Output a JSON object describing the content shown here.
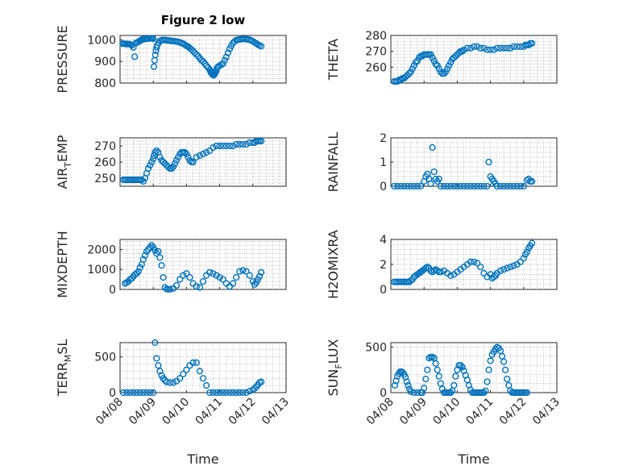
{
  "chart_data": [
    {
      "type": "scatter",
      "title": "Figure 2 low",
      "ylabel": "PRESSURE",
      "xlim": [
        0,
        5
      ],
      "ylim": [
        800,
        1020
      ],
      "yticks": [
        800,
        900,
        1000
      ],
      "marker_color": "#0072BD",
      "grid": true,
      "x": [
        0.08,
        0.12,
        0.16,
        0.2,
        0.24,
        0.28,
        0.32,
        0.36,
        0.4,
        0.44,
        0.48,
        0.52,
        0.56,
        0.6,
        0.64,
        0.68,
        0.72,
        0.76,
        0.8,
        0.84,
        0.88,
        0.92,
        0.96,
        1.0,
        1.02,
        1.04,
        1.06,
        1.08,
        1.1,
        1.12,
        1.16,
        1.2,
        1.25,
        1.3,
        1.35,
        1.4,
        1.45,
        1.5,
        1.55,
        1.6,
        1.65,
        1.7,
        1.75,
        1.8,
        1.85,
        1.9,
        1.95,
        2.0,
        2.05,
        2.1,
        2.15,
        2.2,
        2.25,
        2.3,
        2.35,
        2.4,
        2.45,
        2.5,
        2.55,
        2.6,
        2.65,
        2.7,
        2.72,
        2.74,
        2.76,
        2.78,
        2.8,
        2.82,
        2.84,
        2.86,
        2.88,
        2.9,
        2.92,
        2.95,
        3.0,
        3.05,
        3.1,
        3.15,
        3.2,
        3.25,
        3.3,
        3.35,
        3.4,
        3.45,
        3.5,
        3.55,
        3.6,
        3.65,
        3.7,
        3.75,
        3.8,
        3.85,
        3.9,
        3.95,
        4.0,
        4.05,
        4.1,
        4.15,
        4.2,
        4.25
      ],
      "y": [
        982,
        982,
        981,
        981,
        980,
        980,
        978,
        975,
        965,
        922,
        985,
        988,
        992,
        995,
        1000,
        1002,
        1003,
        1005,
        1005,
        1006,
        1006,
        1007,
        1007,
        1005,
        876,
        905,
        930,
        950,
        965,
        975,
        985,
        995,
        998,
        999,
        999,
        998,
        997,
        996,
        995,
        994,
        993,
        992,
        990,
        988,
        985,
        982,
        978,
        972,
        968,
        962,
        955,
        948,
        940,
        932,
        925,
        915,
        905,
        900,
        890,
        880,
        872,
        862,
        855,
        848,
        845,
        840,
        838,
        836,
        840,
        845,
        850,
        860,
        870,
        875,
        880,
        885,
        890,
        905,
        920,
        940,
        958,
        972,
        985,
        992,
        998,
        1000,
        1002,
        1003,
        1004,
        1004,
        1003,
        1002,
        1000,
        997,
        993,
        988,
        983,
        978,
        974,
        970
      ]
    },
    {
      "type": "scatter",
      "ylabel": "THETA",
      "xlim": [
        0,
        5
      ],
      "ylim": [
        250,
        280
      ],
      "yticks": [
        260,
        270,
        280
      ],
      "marker_color": "#0072BD",
      "grid": true,
      "x": [
        0.1,
        0.15,
        0.2,
        0.25,
        0.3,
        0.35,
        0.4,
        0.45,
        0.5,
        0.55,
        0.6,
        0.65,
        0.7,
        0.75,
        0.8,
        0.85,
        0.9,
        0.95,
        1.0,
        1.05,
        1.1,
        1.15,
        1.2,
        1.25,
        1.3,
        1.35,
        1.4,
        1.45,
        1.5,
        1.55,
        1.6,
        1.65,
        1.7,
        1.75,
        1.8,
        1.85,
        1.9,
        1.95,
        2.0,
        2.05,
        2.1,
        2.15,
        2.2,
        2.3,
        2.4,
        2.5,
        2.6,
        2.7,
        2.8,
        2.9,
        3.0,
        3.1,
        3.2,
        3.3,
        3.4,
        3.5,
        3.6,
        3.7,
        3.8,
        3.9,
        4.0,
        4.05,
        4.1,
        4.15,
        4.2,
        4.25
      ],
      "y": [
        251,
        251,
        251,
        252,
        252,
        253,
        253,
        254,
        255,
        256,
        257,
        259,
        261,
        263,
        264,
        266,
        267,
        267,
        268,
        268,
        268,
        268,
        268,
        266,
        264,
        262,
        261,
        259,
        257,
        256,
        256,
        257,
        259,
        261,
        263,
        265,
        266,
        267,
        268,
        269,
        270,
        270,
        271,
        272,
        272,
        273,
        273,
        272,
        272,
        271,
        271,
        271,
        272,
        272,
        272,
        272,
        272,
        273,
        273,
        273,
        273,
        274,
        274,
        274,
        275,
        275
      ]
    },
    {
      "type": "scatter",
      "ylabel": "AIR_TEMP",
      "xlim": [
        0,
        5
      ],
      "ylim": [
        245,
        275
      ],
      "yticks": [
        250,
        260,
        270
      ],
      "marker_color": "#0072BD",
      "grid": true,
      "x": [
        0.1,
        0.15,
        0.2,
        0.25,
        0.3,
        0.35,
        0.4,
        0.45,
        0.5,
        0.55,
        0.6,
        0.65,
        0.7,
        0.75,
        0.8,
        0.85,
        0.9,
        0.95,
        1.0,
        1.02,
        1.05,
        1.1,
        1.15,
        1.2,
        1.25,
        1.3,
        1.35,
        1.4,
        1.45,
        1.5,
        1.55,
        1.6,
        1.65,
        1.7,
        1.75,
        1.8,
        1.85,
        1.9,
        1.95,
        2.0,
        2.05,
        2.1,
        2.15,
        2.2,
        2.3,
        2.4,
        2.5,
        2.6,
        2.7,
        2.8,
        2.9,
        3.0,
        3.1,
        3.2,
        3.3,
        3.4,
        3.5,
        3.6,
        3.7,
        3.8,
        3.9,
        4.0,
        4.05,
        4.1,
        4.15,
        4.2,
        4.25
      ],
      "y": [
        249,
        249,
        249,
        249,
        249,
        249,
        249,
        249,
        249,
        249,
        249,
        249,
        248,
        250,
        253,
        256,
        258,
        260,
        262,
        264,
        266,
        267,
        266,
        263,
        261,
        260,
        259,
        258,
        257,
        256,
        256,
        257,
        259,
        261,
        263,
        265,
        266,
        266,
        266,
        265,
        263,
        261,
        260,
        260,
        263,
        264,
        265,
        266,
        267,
        269,
        270,
        270,
        270,
        270,
        270,
        270,
        271,
        271,
        271,
        271,
        272,
        272,
        272,
        273,
        273,
        273,
        273
      ]
    },
    {
      "type": "scatter",
      "ylabel": "RAINFALL",
      "xlim": [
        0,
        5
      ],
      "ylim": [
        0,
        2
      ],
      "yticks": [
        0,
        1,
        2
      ],
      "marker_color": "#0072BD",
      "grid": true,
      "x": [
        0.1,
        0.2,
        0.3,
        0.4,
        0.5,
        0.6,
        0.7,
        0.8,
        0.9,
        1.0,
        1.05,
        1.1,
        1.15,
        1.2,
        1.25,
        1.3,
        1.35,
        1.4,
        1.45,
        1.5,
        1.6,
        1.7,
        1.8,
        1.9,
        2.0,
        2.1,
        2.2,
        2.3,
        2.4,
        2.5,
        2.6,
        2.7,
        2.8,
        2.9,
        2.95,
        3.0,
        3.05,
        3.1,
        3.15,
        3.2,
        3.3,
        3.4,
        3.5,
        3.6,
        3.7,
        3.8,
        3.9,
        4.0,
        4.1,
        4.15,
        4.2,
        4.25
      ],
      "y": [
        0,
        0,
        0,
        0,
        0,
        0,
        0,
        0,
        0,
        0.2,
        0.4,
        0.5,
        0.3,
        0.1,
        1.6,
        0.6,
        0.3,
        0.2,
        0.3,
        0,
        0,
        0,
        0,
        0,
        0,
        0,
        0,
        0,
        0,
        0,
        0,
        0,
        0,
        0,
        1.0,
        0.4,
        0.3,
        0.2,
        0.1,
        0,
        0,
        0,
        0,
        0,
        0,
        0,
        0,
        0,
        0.25,
        0.3,
        0.2,
        0.2
      ]
    },
    {
      "type": "scatter",
      "ylabel": "MIXDEPTH",
      "xlim": [
        0,
        5
      ],
      "ylim": [
        0,
        2500
      ],
      "yticks": [
        0,
        1000,
        2000
      ],
      "marker_color": "#0072BD",
      "grid": true,
      "x": [
        0.15,
        0.2,
        0.25,
        0.3,
        0.35,
        0.4,
        0.45,
        0.5,
        0.55,
        0.6,
        0.65,
        0.7,
        0.75,
        0.8,
        0.85,
        0.9,
        0.95,
        1.0,
        1.05,
        1.1,
        1.15,
        1.2,
        1.25,
        1.3,
        1.35,
        1.4,
        1.45,
        1.5,
        1.6,
        1.7,
        1.8,
        1.9,
        2.0,
        2.1,
        2.2,
        2.3,
        2.4,
        2.5,
        2.6,
        2.7,
        2.8,
        2.9,
        3.0,
        3.1,
        3.2,
        3.3,
        3.4,
        3.5,
        3.6,
        3.7,
        3.8,
        3.9,
        4.0,
        4.05,
        4.1,
        4.15,
        4.2,
        4.25
      ],
      "y": [
        300,
        350,
        400,
        500,
        550,
        650,
        750,
        800,
        900,
        1100,
        1250,
        1500,
        1700,
        1900,
        2000,
        2100,
        2200,
        2100,
        1950,
        1800,
        1900,
        1600,
        1200,
        600,
        100,
        20,
        10,
        10,
        50,
        200,
        500,
        700,
        800,
        600,
        300,
        150,
        100,
        400,
        700,
        850,
        800,
        700,
        600,
        500,
        300,
        150,
        300,
        600,
        900,
        950,
        900,
        700,
        400,
        250,
        350,
        500,
        650,
        850
      ]
    },
    {
      "type": "scatter",
      "ylabel": "H2OMIXRA",
      "xlim": [
        0,
        5
      ],
      "ylim": [
        0,
        4
      ],
      "yticks": [
        0,
        2,
        4
      ],
      "marker_color": "#0072BD",
      "grid": true,
      "x": [
        0.1,
        0.15,
        0.2,
        0.25,
        0.3,
        0.35,
        0.4,
        0.45,
        0.5,
        0.55,
        0.6,
        0.65,
        0.7,
        0.75,
        0.8,
        0.85,
        0.9,
        0.95,
        1.0,
        1.05,
        1.1,
        1.15,
        1.2,
        1.25,
        1.3,
        1.35,
        1.4,
        1.45,
        1.5,
        1.6,
        1.7,
        1.8,
        1.9,
        2.0,
        2.1,
        2.2,
        2.3,
        2.4,
        2.5,
        2.6,
        2.7,
        2.8,
        2.9,
        3.0,
        3.05,
        3.1,
        3.15,
        3.2,
        3.3,
        3.4,
        3.5,
        3.6,
        3.7,
        3.8,
        3.9,
        4.0,
        4.05,
        4.1,
        4.15,
        4.2,
        4.25
      ],
      "y": [
        0.6,
        0.6,
        0.6,
        0.6,
        0.6,
        0.6,
        0.6,
        0.6,
        0.6,
        0.6,
        0.7,
        0.8,
        1.0,
        1.1,
        1.2,
        1.3,
        1.4,
        1.5,
        1.6,
        1.7,
        1.8,
        1.7,
        1.5,
        1.4,
        1.5,
        1.6,
        1.5,
        1.4,
        1.4,
        1.5,
        1.3,
        1.1,
        1.2,
        1.4,
        1.6,
        1.8,
        2.0,
        2.2,
        2.2,
        2.1,
        1.8,
        1.3,
        1.0,
        1.2,
        0.9,
        1.0,
        1.1,
        1.3,
        1.5,
        1.6,
        1.7,
        1.8,
        1.9,
        2.0,
        2.2,
        2.5,
        2.8,
        3.0,
        3.3,
        3.5,
        3.7
      ]
    },
    {
      "type": "scatter",
      "ylabel": "TERR_MSL",
      "xlabel": "Time",
      "xlim": [
        0,
        5
      ],
      "ylim": [
        0,
        700
      ],
      "yticks": [
        0,
        500
      ],
      "xticks": [
        "04/08",
        "04/09",
        "04/10",
        "04/11",
        "04/12",
        "04/13"
      ],
      "marker_color": "#0072BD",
      "grid": true,
      "x": [
        0.1,
        0.2,
        0.3,
        0.4,
        0.5,
        0.6,
        0.7,
        0.8,
        0.9,
        1.0,
        1.05,
        1.1,
        1.15,
        1.2,
        1.25,
        1.3,
        1.35,
        1.4,
        1.5,
        1.6,
        1.7,
        1.8,
        1.9,
        2.0,
        2.1,
        2.2,
        2.3,
        2.4,
        2.5,
        2.6,
        2.7,
        2.8,
        2.9,
        3.0,
        3.1,
        3.2,
        3.3,
        3.4,
        3.5,
        3.6,
        3.7,
        3.8,
        3.9,
        4.0,
        4.05,
        4.1,
        4.15,
        4.2,
        4.25
      ],
      "y": [
        0,
        0,
        0,
        0,
        0,
        0,
        0,
        0,
        0,
        0,
        700,
        480,
        380,
        300,
        240,
        200,
        170,
        150,
        140,
        140,
        160,
        200,
        260,
        320,
        380,
        420,
        420,
        300,
        200,
        100,
        0,
        0,
        0,
        0,
        0,
        0,
        0,
        0,
        0,
        0,
        0,
        0,
        20,
        40,
        60,
        80,
        110,
        140,
        150
      ]
    },
    {
      "type": "scatter",
      "ylabel": "SUN_FLUX",
      "xlabel": "Time",
      "xlim": [
        0,
        5
      ],
      "ylim": [
        0,
        550
      ],
      "yticks": [
        0,
        500
      ],
      "xticks": [
        "04/08",
        "04/09",
        "04/10",
        "04/11",
        "04/12",
        "04/13"
      ],
      "marker_color": "#0072BD",
      "grid": true,
      "x": [
        0.12,
        0.16,
        0.2,
        0.24,
        0.28,
        0.32,
        0.36,
        0.4,
        0.44,
        0.48,
        0.52,
        0.56,
        0.6,
        0.7,
        0.8,
        0.9,
        0.95,
        1.0,
        1.05,
        1.1,
        1.15,
        1.2,
        1.25,
        1.3,
        1.35,
        1.4,
        1.45,
        1.5,
        1.55,
        1.6,
        1.65,
        1.7,
        1.75,
        1.8,
        1.85,
        1.9,
        1.95,
        2.0,
        2.05,
        2.1,
        2.15,
        2.2,
        2.25,
        2.3,
        2.35,
        2.4,
        2.45,
        2.5,
        2.55,
        2.6,
        2.65,
        2.7,
        2.75,
        2.8,
        2.85,
        2.9,
        2.95,
        3.0,
        3.05,
        3.1,
        3.15,
        3.2,
        3.25,
        3.3,
        3.35,
        3.4,
        3.45,
        3.5,
        3.55,
        3.6,
        3.65,
        3.7,
        3.75,
        3.8,
        3.85,
        3.9,
        3.95,
        4.0,
        4.05,
        4.1
      ],
      "y": [
        80,
        130,
        180,
        210,
        230,
        230,
        220,
        200,
        170,
        120,
        80,
        40,
        10,
        0,
        0,
        0,
        0,
        50,
        150,
        250,
        380,
        390,
        390,
        380,
        320,
        250,
        180,
        100,
        40,
        0,
        0,
        0,
        0,
        0,
        20,
        80,
        180,
        250,
        300,
        300,
        280,
        240,
        190,
        140,
        80,
        30,
        0,
        0,
        0,
        0,
        0,
        0,
        0,
        0,
        20,
        120,
        250,
        350,
        420,
        450,
        480,
        500,
        490,
        460,
        400,
        340,
        250,
        150,
        80,
        20,
        0,
        0,
        0,
        0,
        0,
        0,
        0,
        0,
        0,
        0
      ]
    }
  ]
}
